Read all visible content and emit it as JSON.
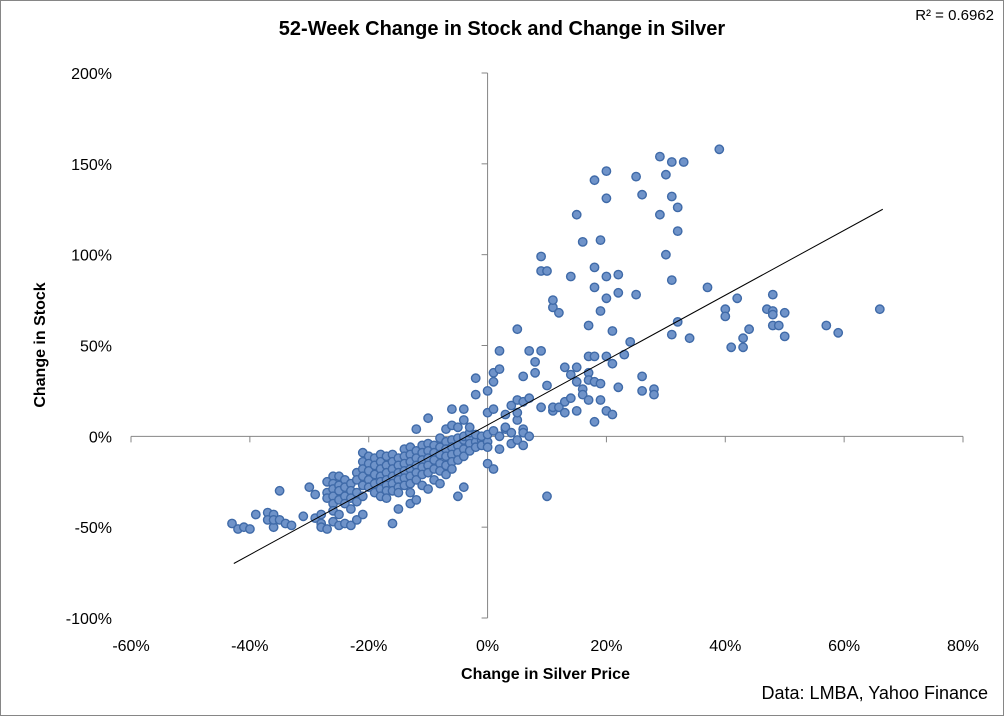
{
  "chart_data": {
    "type": "scatter",
    "title": "52-Week Change in Stock and Change in Silver",
    "xlabel": "Change in Silver Price",
    "ylabel": "Change in Stock",
    "annotation_r2": "R² = 0.6962",
    "source": "Data: LMBA, Yahoo Finance",
    "xlim": [
      -0.6,
      0.8
    ],
    "ylim": [
      -1.0,
      2.0
    ],
    "x_ticks": [
      -0.6,
      -0.4,
      -0.2,
      0,
      0.2,
      0.4,
      0.6,
      0.8
    ],
    "x_tick_labels": [
      "-60%",
      "-40%",
      "-20%",
      "0%",
      "20%",
      "40%",
      "60%",
      "80%"
    ],
    "y_ticks": [
      -1.0,
      -0.5,
      0,
      0.5,
      1.0,
      1.5,
      2.0
    ],
    "y_tick_labels": [
      "-100%",
      "-50%",
      "0%",
      "50%",
      "100%",
      "150%",
      "200%"
    ],
    "grid": false,
    "marker_color": "#6f93c9",
    "marker_edge_color": "#3f6aa8",
    "trendline": {
      "x": [
        -0.427,
        0.665
      ],
      "y": [
        -0.7,
        1.25
      ],
      "color": "#000000"
    },
    "points": [
      [
        -0.43,
        -0.48
      ],
      [
        -0.42,
        -0.51
      ],
      [
        -0.41,
        -0.5
      ],
      [
        -0.4,
        -0.51
      ],
      [
        -0.39,
        -0.43
      ],
      [
        -0.37,
        -0.42
      ],
      [
        -0.37,
        -0.46
      ],
      [
        -0.36,
        -0.5
      ],
      [
        -0.36,
        -0.43
      ],
      [
        -0.36,
        -0.46
      ],
      [
        -0.35,
        -0.3
      ],
      [
        -0.35,
        -0.46
      ],
      [
        -0.34,
        -0.48
      ],
      [
        -0.33,
        -0.49
      ],
      [
        -0.31,
        -0.44
      ],
      [
        -0.3,
        -0.28
      ],
      [
        -0.29,
        -0.32
      ],
      [
        -0.29,
        -0.45
      ],
      [
        -0.28,
        -0.48
      ],
      [
        -0.28,
        -0.43
      ],
      [
        -0.28,
        -0.5
      ],
      [
        -0.27,
        -0.25
      ],
      [
        -0.27,
        -0.31
      ],
      [
        -0.27,
        -0.34
      ],
      [
        -0.27,
        -0.51
      ],
      [
        -0.26,
        -0.22
      ],
      [
        -0.26,
        -0.26
      ],
      [
        -0.26,
        -0.29
      ],
      [
        -0.26,
        -0.33
      ],
      [
        -0.26,
        -0.37
      ],
      [
        -0.26,
        -0.41
      ],
      [
        -0.26,
        -0.47
      ],
      [
        -0.25,
        -0.22
      ],
      [
        -0.25,
        -0.27
      ],
      [
        -0.25,
        -0.3
      ],
      [
        -0.25,
        -0.35
      ],
      [
        -0.25,
        -0.43
      ],
      [
        -0.25,
        -0.49
      ],
      [
        -0.24,
        -0.24
      ],
      [
        -0.24,
        -0.28
      ],
      [
        -0.24,
        -0.33
      ],
      [
        -0.24,
        -0.37
      ],
      [
        -0.24,
        -0.48
      ],
      [
        -0.23,
        -0.26
      ],
      [
        -0.23,
        -0.3
      ],
      [
        -0.23,
        -0.34
      ],
      [
        -0.23,
        -0.4
      ],
      [
        -0.23,
        -0.49
      ],
      [
        -0.22,
        -0.2
      ],
      [
        -0.22,
        -0.24
      ],
      [
        -0.22,
        -0.31
      ],
      [
        -0.22,
        -0.36
      ],
      [
        -0.22,
        -0.46
      ],
      [
        -0.21,
        -0.09
      ],
      [
        -0.21,
        -0.14
      ],
      [
        -0.21,
        -0.18
      ],
      [
        -0.21,
        -0.22
      ],
      [
        -0.21,
        -0.27
      ],
      [
        -0.21,
        -0.33
      ],
      [
        -0.21,
        -0.43
      ],
      [
        -0.2,
        -0.11
      ],
      [
        -0.2,
        -0.15
      ],
      [
        -0.2,
        -0.19
      ],
      [
        -0.2,
        -0.24
      ],
      [
        -0.2,
        -0.28
      ],
      [
        -0.19,
        -0.12
      ],
      [
        -0.19,
        -0.16
      ],
      [
        -0.19,
        -0.21
      ],
      [
        -0.19,
        -0.26
      ],
      [
        -0.19,
        -0.31
      ],
      [
        -0.18,
        -0.1
      ],
      [
        -0.18,
        -0.14
      ],
      [
        -0.18,
        -0.18
      ],
      [
        -0.18,
        -0.22
      ],
      [
        -0.18,
        -0.25
      ],
      [
        -0.18,
        -0.29
      ],
      [
        -0.18,
        -0.33
      ],
      [
        -0.17,
        -0.11
      ],
      [
        -0.17,
        -0.16
      ],
      [
        -0.17,
        -0.2
      ],
      [
        -0.17,
        -0.24
      ],
      [
        -0.17,
        -0.27
      ],
      [
        -0.17,
        -0.3
      ],
      [
        -0.17,
        -0.34
      ],
      [
        -0.16,
        -0.1
      ],
      [
        -0.16,
        -0.14
      ],
      [
        -0.16,
        -0.18
      ],
      [
        -0.16,
        -0.22
      ],
      [
        -0.16,
        -0.26
      ],
      [
        -0.16,
        -0.3
      ],
      [
        -0.16,
        -0.48
      ],
      [
        -0.15,
        -0.12
      ],
      [
        -0.15,
        -0.16
      ],
      [
        -0.15,
        -0.2
      ],
      [
        -0.15,
        -0.24
      ],
      [
        -0.15,
        -0.28
      ],
      [
        -0.15,
        -0.31
      ],
      [
        -0.15,
        -0.4
      ],
      [
        -0.14,
        -0.07
      ],
      [
        -0.14,
        -0.11
      ],
      [
        -0.14,
        -0.15
      ],
      [
        -0.14,
        -0.19
      ],
      [
        -0.14,
        -0.23
      ],
      [
        -0.14,
        -0.27
      ],
      [
        -0.13,
        -0.06
      ],
      [
        -0.13,
        -0.1
      ],
      [
        -0.13,
        -0.14
      ],
      [
        -0.13,
        -0.18
      ],
      [
        -0.13,
        -0.22
      ],
      [
        -0.13,
        -0.26
      ],
      [
        -0.13,
        -0.31
      ],
      [
        -0.13,
        -0.37
      ],
      [
        -0.12,
        -0.08
      ],
      [
        -0.12,
        -0.12
      ],
      [
        -0.12,
        -0.16
      ],
      [
        -0.12,
        -0.2
      ],
      [
        -0.12,
        -0.24
      ],
      [
        -0.12,
        -0.35
      ],
      [
        -0.12,
        0.04
      ],
      [
        -0.11,
        -0.05
      ],
      [
        -0.11,
        -0.09
      ],
      [
        -0.11,
        -0.13
      ],
      [
        -0.11,
        -0.17
      ],
      [
        -0.11,
        -0.21
      ],
      [
        -0.11,
        -0.27
      ],
      [
        -0.1,
        -0.04
      ],
      [
        -0.1,
        -0.08
      ],
      [
        -0.1,
        -0.12
      ],
      [
        -0.1,
        -0.16
      ],
      [
        -0.1,
        -0.2
      ],
      [
        -0.1,
        -0.29
      ],
      [
        -0.1,
        0.1
      ],
      [
        -0.09,
        -0.05
      ],
      [
        -0.09,
        -0.09
      ],
      [
        -0.09,
        -0.13
      ],
      [
        -0.09,
        -0.18
      ],
      [
        -0.09,
        -0.24
      ],
      [
        -0.08,
        -0.01
      ],
      [
        -0.08,
        -0.06
      ],
      [
        -0.08,
        -0.1
      ],
      [
        -0.08,
        -0.15
      ],
      [
        -0.08,
        -0.19
      ],
      [
        -0.08,
        -0.26
      ],
      [
        -0.07,
        -0.03
      ],
      [
        -0.07,
        -0.07
      ],
      [
        -0.07,
        -0.11
      ],
      [
        -0.07,
        -0.16
      ],
      [
        -0.07,
        -0.21
      ],
      [
        -0.07,
        0.04
      ],
      [
        -0.06,
        -0.02
      ],
      [
        -0.06,
        -0.06
      ],
      [
        -0.06,
        -0.1
      ],
      [
        -0.06,
        -0.14
      ],
      [
        -0.06,
        -0.18
      ],
      [
        -0.06,
        0.06
      ],
      [
        -0.06,
        0.15
      ],
      [
        -0.05,
        -0.01
      ],
      [
        -0.05,
        -0.05
      ],
      [
        -0.05,
        -0.09
      ],
      [
        -0.05,
        -0.13
      ],
      [
        -0.05,
        -0.33
      ],
      [
        -0.05,
        0.05
      ],
      [
        -0.04,
        -0.02
      ],
      [
        -0.04,
        -0.07
      ],
      [
        -0.04,
        -0.11
      ],
      [
        -0.04,
        -0.28
      ],
      [
        -0.04,
        0.0
      ],
      [
        -0.04,
        0.15
      ],
      [
        -0.04,
        0.09
      ],
      [
        -0.03,
        -0.01
      ],
      [
        -0.03,
        -0.04
      ],
      [
        -0.03,
        -0.08
      ],
      [
        -0.03,
        0.02
      ],
      [
        -0.03,
        0.05
      ],
      [
        -0.02,
        -0.03
      ],
      [
        -0.02,
        -0.06
      ],
      [
        -0.02,
        0.01
      ],
      [
        -0.02,
        0.23
      ],
      [
        -0.02,
        0.32
      ],
      [
        -0.01,
        -0.02
      ],
      [
        -0.01,
        -0.05
      ],
      [
        -0.01,
        0.0
      ],
      [
        0.0,
        -0.03
      ],
      [
        0.0,
        -0.06
      ],
      [
        0.0,
        -0.15
      ],
      [
        0.0,
        0.01
      ],
      [
        0.0,
        0.13
      ],
      [
        0.0,
        0.25
      ],
      [
        0.01,
        0.03
      ],
      [
        0.01,
        -0.18
      ],
      [
        0.01,
        0.15
      ],
      [
        0.01,
        0.3
      ],
      [
        0.01,
        0.35
      ],
      [
        0.02,
        0.37
      ],
      [
        0.02,
        0.47
      ],
      [
        0.02,
        0.0
      ],
      [
        0.02,
        -0.07
      ],
      [
        0.03,
        0.04
      ],
      [
        0.03,
        0.05
      ],
      [
        0.03,
        0.12
      ],
      [
        0.04,
        0.02
      ],
      [
        0.04,
        -0.04
      ],
      [
        0.04,
        0.17
      ],
      [
        0.05,
        -0.02
      ],
      [
        0.05,
        0.09
      ],
      [
        0.05,
        0.13
      ],
      [
        0.05,
        0.2
      ],
      [
        0.05,
        0.59
      ],
      [
        0.06,
        0.04
      ],
      [
        0.06,
        0.02
      ],
      [
        0.06,
        -0.05
      ],
      [
        0.06,
        0.33
      ],
      [
        0.06,
        0.19
      ],
      [
        0.07,
        0.21
      ],
      [
        0.07,
        0.47
      ],
      [
        0.07,
        0.0
      ],
      [
        0.08,
        0.35
      ],
      [
        0.08,
        0.41
      ],
      [
        0.09,
        0.47
      ],
      [
        0.09,
        0.99
      ],
      [
        0.09,
        0.91
      ],
      [
        0.09,
        0.16
      ],
      [
        0.1,
        0.28
      ],
      [
        0.1,
        -0.33
      ],
      [
        0.1,
        0.91
      ],
      [
        0.11,
        0.71
      ],
      [
        0.11,
        0.75
      ],
      [
        0.11,
        0.14
      ],
      [
        0.11,
        0.16
      ],
      [
        0.12,
        0.68
      ],
      [
        0.12,
        0.16
      ],
      [
        0.13,
        0.38
      ],
      [
        0.13,
        0.19
      ],
      [
        0.13,
        0.13
      ],
      [
        0.14,
        0.34
      ],
      [
        0.14,
        0.88
      ],
      [
        0.14,
        0.21
      ],
      [
        0.15,
        1.22
      ],
      [
        0.15,
        0.38
      ],
      [
        0.15,
        0.3
      ],
      [
        0.15,
        0.14
      ],
      [
        0.16,
        1.07
      ],
      [
        0.16,
        0.26
      ],
      [
        0.16,
        0.23
      ],
      [
        0.17,
        0.61
      ],
      [
        0.17,
        0.44
      ],
      [
        0.17,
        0.35
      ],
      [
        0.17,
        0.31
      ],
      [
        0.17,
        0.2
      ],
      [
        0.18,
        1.41
      ],
      [
        0.18,
        0.93
      ],
      [
        0.18,
        0.82
      ],
      [
        0.18,
        0.44
      ],
      [
        0.18,
        0.3
      ],
      [
        0.18,
        0.08
      ],
      [
        0.19,
        1.08
      ],
      [
        0.19,
        0.69
      ],
      [
        0.19,
        0.29
      ],
      [
        0.19,
        0.2
      ],
      [
        0.2,
        1.31
      ],
      [
        0.2,
        1.46
      ],
      [
        0.2,
        0.88
      ],
      [
        0.2,
        0.76
      ],
      [
        0.2,
        0.44
      ],
      [
        0.2,
        0.14
      ],
      [
        0.21,
        0.58
      ],
      [
        0.21,
        0.4
      ],
      [
        0.21,
        0.12
      ],
      [
        0.22,
        0.79
      ],
      [
        0.22,
        0.89
      ],
      [
        0.22,
        0.27
      ],
      [
        0.23,
        0.45
      ],
      [
        0.24,
        0.52
      ],
      [
        0.25,
        1.43
      ],
      [
        0.25,
        0.78
      ],
      [
        0.26,
        1.33
      ],
      [
        0.26,
        0.33
      ],
      [
        0.26,
        0.25
      ],
      [
        0.28,
        0.26
      ],
      [
        0.28,
        0.23
      ],
      [
        0.29,
        1.54
      ],
      [
        0.29,
        1.22
      ],
      [
        0.3,
        1.0
      ],
      [
        0.3,
        1.44
      ],
      [
        0.31,
        1.51
      ],
      [
        0.31,
        1.32
      ],
      [
        0.31,
        0.86
      ],
      [
        0.31,
        0.56
      ],
      [
        0.32,
        1.26
      ],
      [
        0.32,
        1.13
      ],
      [
        0.32,
        0.63
      ],
      [
        0.33,
        1.51
      ],
      [
        0.34,
        0.54
      ],
      [
        0.37,
        0.82
      ],
      [
        0.39,
        1.58
      ],
      [
        0.4,
        0.7
      ],
      [
        0.4,
        0.66
      ],
      [
        0.41,
        0.49
      ],
      [
        0.42,
        0.76
      ],
      [
        0.43,
        0.49
      ],
      [
        0.43,
        0.54
      ],
      [
        0.44,
        0.59
      ],
      [
        0.47,
        0.7
      ],
      [
        0.48,
        0.69
      ],
      [
        0.48,
        0.61
      ],
      [
        0.48,
        0.78
      ],
      [
        0.48,
        0.67
      ],
      [
        0.49,
        0.61
      ],
      [
        0.5,
        0.55
      ],
      [
        0.5,
        0.68
      ],
      [
        0.57,
        0.61
      ],
      [
        0.59,
        0.57
      ],
      [
        0.66,
        0.7
      ]
    ]
  }
}
